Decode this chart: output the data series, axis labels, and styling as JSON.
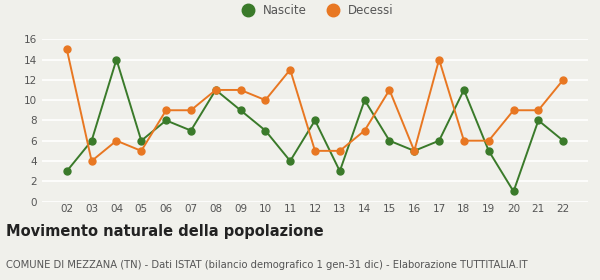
{
  "years": [
    "02",
    "03",
    "04",
    "05",
    "06",
    "07",
    "08",
    "09",
    "10",
    "11",
    "12",
    "13",
    "14",
    "15",
    "16",
    "17",
    "18",
    "19",
    "20",
    "21",
    "22"
  ],
  "nascite": [
    3,
    6,
    14,
    6,
    8,
    7,
    11,
    9,
    7,
    4,
    8,
    3,
    10,
    6,
    5,
    6,
    11,
    5,
    1,
    8,
    6
  ],
  "decessi": [
    15,
    4,
    6,
    5,
    9,
    9,
    11,
    11,
    10,
    13,
    5,
    5,
    7,
    11,
    5,
    14,
    6,
    6,
    9,
    9,
    12
  ],
  "nascite_color": "#3a7a2a",
  "decessi_color": "#e87722",
  "title": "Movimento naturale della popolazione",
  "subtitle": "COMUNE DI MEZZANA (TN) - Dati ISTAT (bilancio demografico 1 gen-31 dic) - Elaborazione TUTTITALIA.IT",
  "legend_nascite": "Nascite",
  "legend_decessi": "Decessi",
  "ylim": [
    0,
    16
  ],
  "yticks": [
    0,
    2,
    4,
    6,
    8,
    10,
    12,
    14,
    16
  ],
  "background_color": "#f0f0eb",
  "grid_color": "#ffffff",
  "title_fontsize": 10.5,
  "subtitle_fontsize": 7.2,
  "tick_fontsize": 7.5,
  "legend_fontsize": 8.5,
  "marker_size": 5,
  "linewidth": 1.4
}
